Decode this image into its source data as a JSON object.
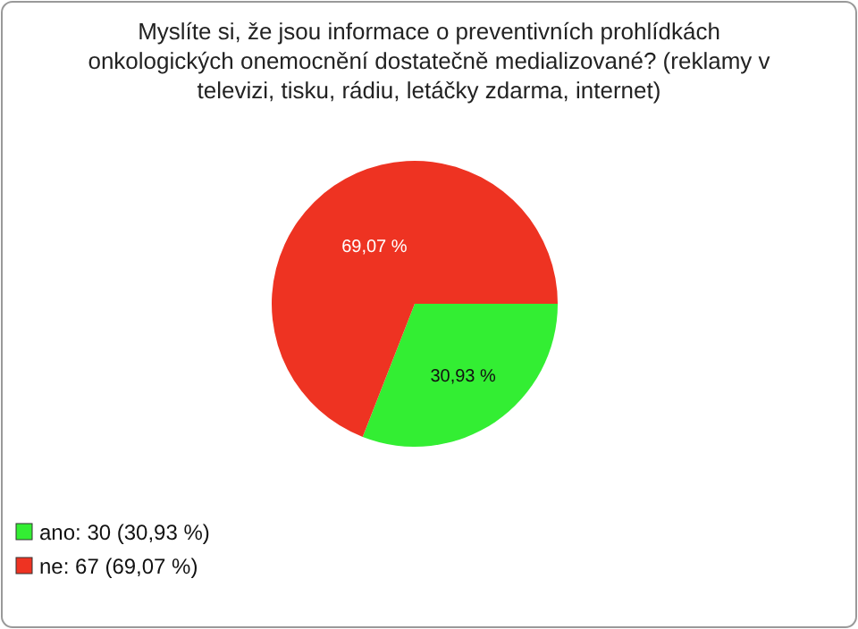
{
  "chart_data": {
    "type": "pie",
    "title": "Myslíte si, že jsou informace o preventivních prohlídkách onkologických onemocnění dostatečně medializované? (reklamy v televizi, tisku, rádiu, letáčky zdarma, internet)",
    "categories": [
      "ano: 30 (30,93 %)",
      "ne: 67 (69,07 %)"
    ],
    "values": [
      30.93,
      69.07
    ],
    "colors": [
      "#33ee33",
      "#ee3322"
    ],
    "value_labels": [
      "30,93 %",
      "69,07 %"
    ],
    "legend": "bottom left"
  }
}
